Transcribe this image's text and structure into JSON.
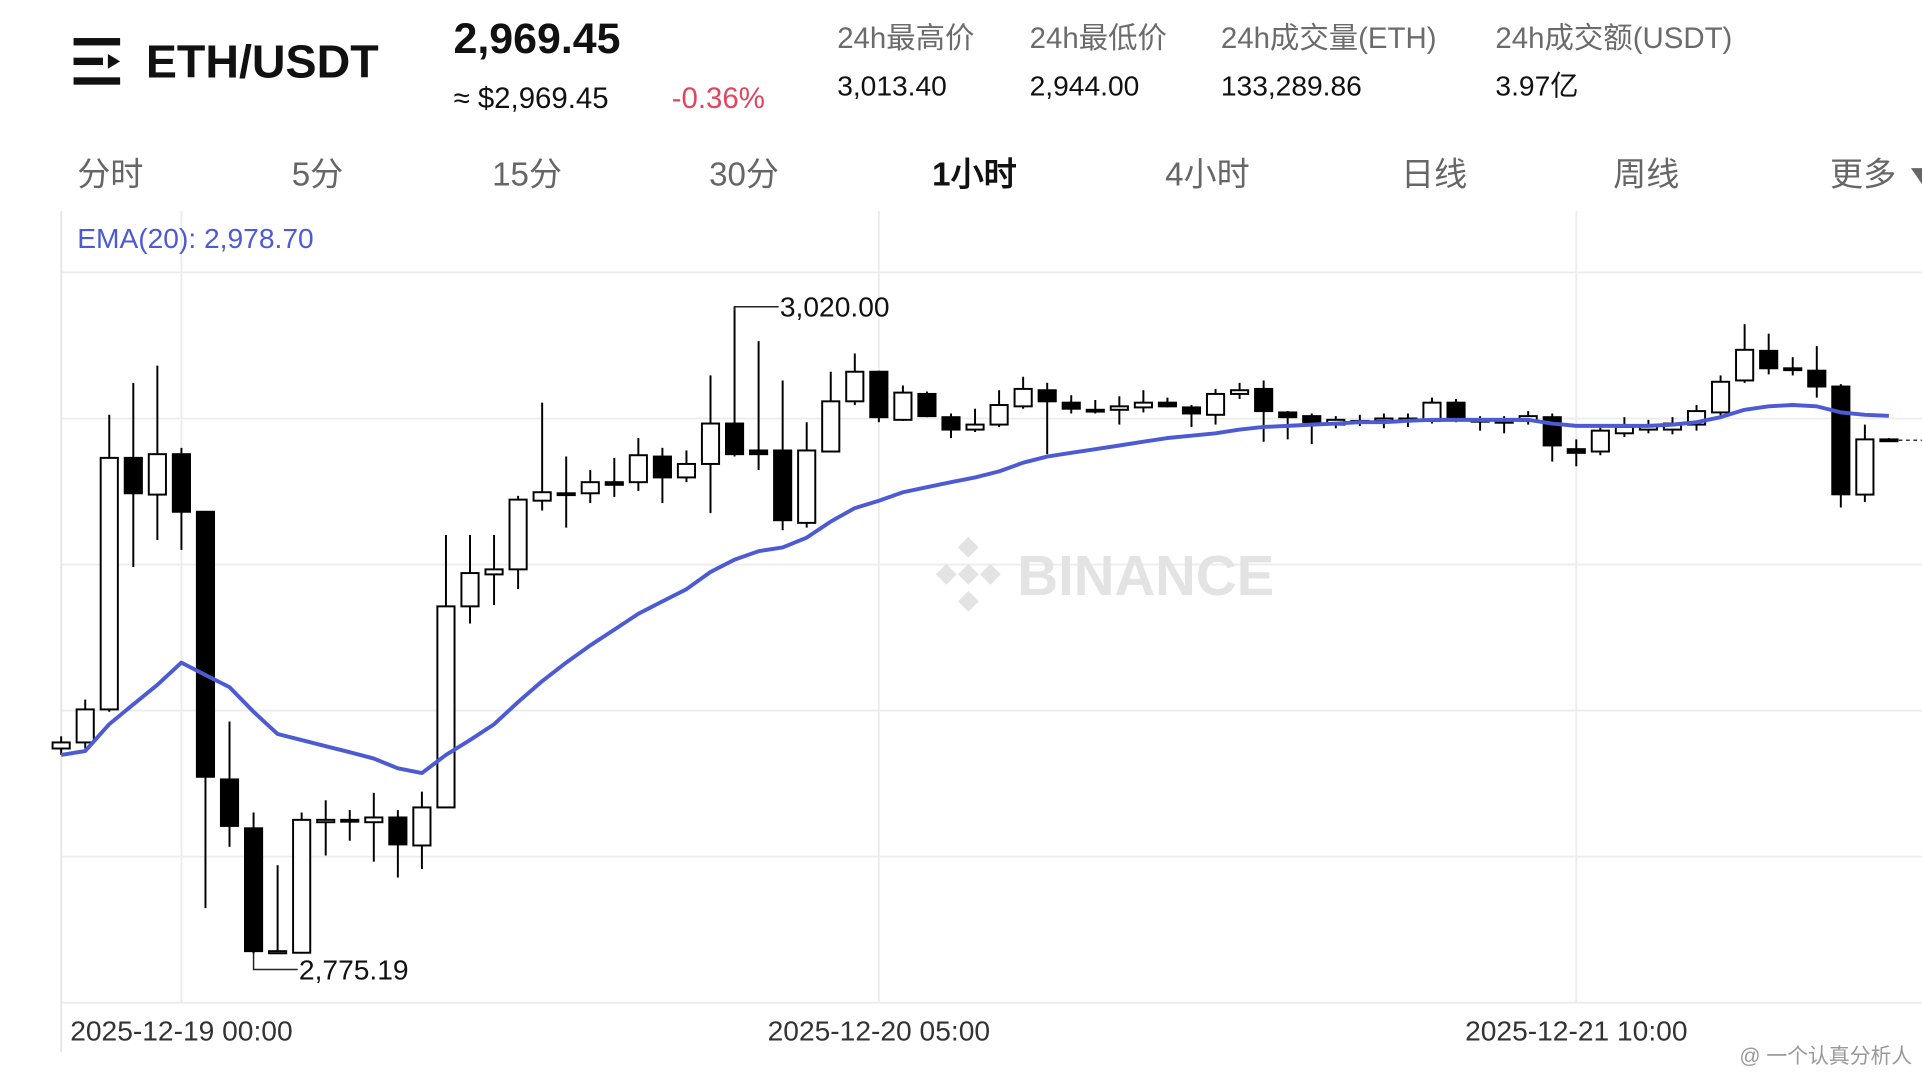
{
  "header": {
    "symbol": "ETH/USDT",
    "price": "2,969.45",
    "price_usd": "≈ $2,969.45",
    "change": "-0.36%",
    "stats": [
      {
        "label": "24h最高价",
        "value": "3,013.40"
      },
      {
        "label": "24h最低价",
        "value": "2,944.00"
      },
      {
        "label": "24h成交量(ETH)",
        "value": "133,289.86"
      },
      {
        "label": "24h成交额(USDT)",
        "value": "3.97亿"
      }
    ]
  },
  "tabs": [
    {
      "label": "分时",
      "active": false
    },
    {
      "label": "5分",
      "active": false
    },
    {
      "label": "15分",
      "active": false
    },
    {
      "label": "30分",
      "active": false
    },
    {
      "label": "1小时",
      "active": true
    },
    {
      "label": "4小时",
      "active": false
    },
    {
      "label": "日线",
      "active": false
    },
    {
      "label": "周线",
      "active": false
    },
    {
      "label": "更多",
      "active": false
    }
  ],
  "watermark": "BINANCE",
  "credit": "@ 一个认真分析人",
  "chart_data": {
    "type": "candlestick",
    "ema_label": "EMA(20): 2,978.70",
    "max_label": "3,020.00",
    "min_label": "2,775.19",
    "up_color": "#ffffff",
    "down_color": "#000000",
    "ylim": [
      2756.6,
      3056.2
    ],
    "grid": true,
    "categories": [
      null,
      null,
      null,
      null,
      null,
      "2025-12-19 00:00",
      null,
      null,
      null,
      null,
      null,
      null,
      null,
      null,
      null,
      null,
      null,
      null,
      null,
      null,
      null,
      null,
      null,
      null,
      null,
      null,
      null,
      null,
      null,
      null,
      null,
      null,
      null,
      null,
      "2025-12-20 05:00",
      null,
      null,
      null,
      null,
      null,
      null,
      null,
      null,
      null,
      null,
      null,
      null,
      null,
      null,
      null,
      null,
      null,
      null,
      null,
      null,
      null,
      null,
      null,
      null,
      null,
      null,
      null,
      null,
      "2025-12-21 10:00",
      null,
      null,
      null,
      null,
      null,
      null,
      null,
      null,
      null,
      null,
      null,
      null,
      null
    ],
    "open": [
      2852.8,
      2855.1,
      2867.6,
      2962.8,
      2948.9,
      2964.2,
      2942.4,
      2841.1,
      2822.6,
      2775.3,
      2775.5,
      2824.9,
      2825.3,
      2824.9,
      2826.7,
      2816.1,
      2830.5,
      2906.6,
      2918.7,
      2920.6,
      2946.6,
      2949.4,
      2949.4,
      2953.6,
      2953.6,
      2963.3,
      2955.4,
      2960.5,
      2975.8,
      2965.6,
      2965.6,
      2938.2,
      2965.2,
      2984.2,
      2995.4,
      2977.2,
      2987.0,
      2978.2,
      2973.5,
      2975.4,
      2982.3,
      2988.4,
      2983.7,
      2981.0,
      2981.0,
      2981.9,
      2983.7,
      2981.9,
      2979.1,
      2987.0,
      2988.9,
      2980.0,
      2978.6,
      2975.4,
      2976.8,
      2976.8,
      2977.7,
      2976.8,
      2983.7,
      2977.2,
      2976.8,
      2976.8,
      2978.2,
      2966.1,
      2965.2,
      2972.1,
      2973.5,
      2973.5,
      2975.4,
      2980.0,
      2992.1,
      3003.3,
      2996.7,
      2995.8,
      2989.8,
      2948.9,
      2969.8
    ],
    "high": [
      2857.4,
      2871.3,
      2979.1,
      2991.2,
      2997.7,
      2966.6,
      2942.4,
      2863.0,
      2828.6,
      2808.6,
      2828.6,
      2833.2,
      2829.5,
      2836.0,
      2829.5,
      2836.5,
      2933.6,
      2933.6,
      2933.6,
      2948.4,
      2983.7,
      2963.3,
      2958.2,
      2962.8,
      2970.3,
      2966.6,
      2965.6,
      2994.0,
      3020.0,
      3007.0,
      2992.1,
      2976.3,
      2995.4,
      3002.3,
      2995.8,
      2990.2,
      2987.9,
      2979.6,
      2981.4,
      2988.4,
      2993.5,
      2991.2,
      2986.5,
      2984.7,
      2986.1,
      2988.4,
      2985.6,
      2982.8,
      2988.9,
      2991.2,
      2992.1,
      2980.5,
      2979.6,
      2978.6,
      2979.1,
      2979.6,
      2979.6,
      2985.6,
      2985.1,
      2978.6,
      2978.6,
      2980.5,
      2979.6,
      2969.8,
      2974.5,
      2978.2,
      2977.2,
      2978.2,
      2982.8,
      2994.0,
      3013.4,
      3009.8,
      3000.9,
      3005.1,
      2990.7,
      2975.4,
      2970.3
    ],
    "low": [
      2850.4,
      2852.8,
      2866.7,
      2921.5,
      2931.7,
      2928.0,
      2792.4,
      2815.6,
      2775.19,
      2775.19,
      2775.19,
      2812.3,
      2817.9,
      2810.0,
      2804.0,
      2807.2,
      2830.5,
      2900.1,
      2907.1,
      2913.1,
      2942.9,
      2936.4,
      2945.7,
      2948.0,
      2950.3,
      2945.7,
      2953.6,
      2941.9,
      2963.3,
      2958.2,
      2935.4,
      2936.4,
      2965.2,
      2982.8,
      2976.3,
      2976.8,
      2978.2,
      2970.3,
      2972.6,
      2974.5,
      2981.4,
      2964.2,
      2979.6,
      2979.6,
      2975.4,
      2980.0,
      2981.9,
      2974.5,
      2975.4,
      2985.1,
      2968.9,
      2969.8,
      2968.0,
      2974.0,
      2974.9,
      2974.0,
      2974.5,
      2975.8,
      2976.3,
      2973.1,
      2972.1,
      2975.4,
      2961.4,
      2959.6,
      2963.8,
      2970.7,
      2972.1,
      2971.7,
      2973.1,
      2978.2,
      2991.2,
      2994.4,
      2994.0,
      2985.6,
      2944.0,
      2946.1,
      2968.9
    ],
    "close": [
      2855.1,
      2867.6,
      2962.8,
      2949.4,
      2964.2,
      2942.4,
      2842.1,
      2823.5,
      2776.1,
      2776.1,
      2825.8,
      2825.8,
      2825.8,
      2826.7,
      2816.5,
      2830.5,
      2906.6,
      2919.2,
      2920.6,
      2947.0,
      2949.8,
      2949.4,
      2953.6,
      2952.6,
      2963.8,
      2955.4,
      2960.5,
      2975.8,
      2964.2,
      2964.2,
      2939.2,
      2965.6,
      2984.2,
      2995.4,
      2978.2,
      2987.5,
      2978.6,
      2973.5,
      2975.4,
      2982.8,
      2988.9,
      2984.2,
      2981.4,
      2981.0,
      2982.3,
      2983.7,
      2982.3,
      2979.6,
      2987.0,
      2988.4,
      2980.5,
      2978.2,
      2976.3,
      2977.2,
      2976.8,
      2977.7,
      2976.8,
      2983.7,
      2977.7,
      2977.2,
      2976.8,
      2978.6,
      2967.5,
      2964.7,
      2973.1,
      2974.5,
      2974.9,
      2975.8,
      2980.5,
      2991.6,
      3003.7,
      2996.7,
      2996.7,
      2989.8,
      2949.0,
      2969.8,
      2969.45
    ],
    "series": [
      {
        "name": "EMA(20)",
        "color": "#4c5bd4",
        "values": [
          2850.4,
          2851.8,
          2862.0,
          2869.5,
          2876.9,
          2885.3,
          2880.6,
          2876.0,
          2866.7,
          2858.3,
          2856.0,
          2853.7,
          2851.4,
          2849.0,
          2845.3,
          2843.5,
          2850.4,
          2856.0,
          2862.0,
          2870.4,
          2878.3,
          2885.3,
          2891.8,
          2897.8,
          2903.8,
          2908.5,
          2913.1,
          2919.6,
          2924.3,
          2927.5,
          2928.9,
          2932.6,
          2938.7,
          2943.8,
          2946.6,
          2949.8,
          2951.7,
          2953.6,
          2955.4,
          2957.7,
          2961.0,
          2963.3,
          2964.7,
          2966.1,
          2967.5,
          2968.9,
          2970.3,
          2971.2,
          2972.1,
          2973.5,
          2974.5,
          2974.9,
          2975.4,
          2975.8,
          2976.3,
          2976.3,
          2976.8,
          2977.2,
          2977.2,
          2977.2,
          2977.2,
          2977.2,
          2975.8,
          2974.9,
          2974.9,
          2974.9,
          2974.9,
          2975.4,
          2976.3,
          2978.2,
          2981.0,
          2982.3,
          2982.8,
          2982.3,
          2980.0,
          2979.1,
          2978.7
        ]
      }
    ]
  }
}
